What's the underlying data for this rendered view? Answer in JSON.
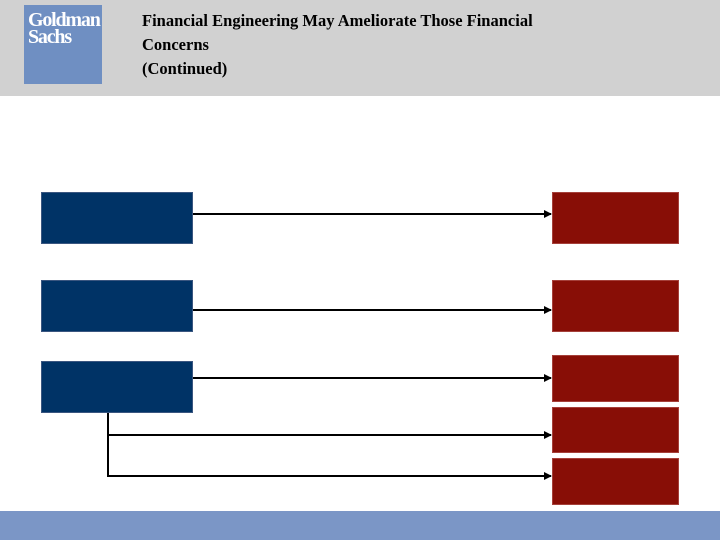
{
  "header": {
    "logo_line1": "Goldman",
    "logo_line2": "Sachs",
    "title_lines": [
      "Financial Engineering May Ameliorate Those Financial",
      "Concerns",
      "(Continued)"
    ]
  },
  "colors": {
    "header_bg": "#d1d1d1",
    "logo_bg": "#6f8fc2",
    "source_box": "#003366",
    "target_box": "#880e06",
    "footer_bg": "#7b96c6",
    "connector": "#000000"
  },
  "diagram": {
    "source_boxes": [
      "source-1",
      "source-2",
      "source-3"
    ],
    "target_boxes": [
      "target-1",
      "target-2",
      "target-3",
      "target-4",
      "target-5"
    ],
    "connections": [
      {
        "from": "source-1",
        "to": "target-1"
      },
      {
        "from": "source-2",
        "to": "target-2"
      },
      {
        "from": "source-3",
        "to": "target-3"
      },
      {
        "from": "source-3",
        "to": "target-4"
      },
      {
        "from": "source-3",
        "to": "target-5"
      }
    ]
  }
}
